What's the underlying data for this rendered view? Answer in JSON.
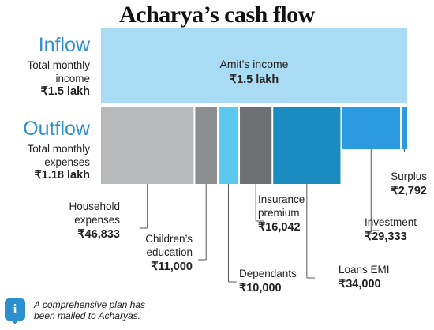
{
  "title": "Acharya’s cash flow",
  "inflow": {
    "label": "Inflow",
    "sub_line1": "Total monthly",
    "sub_line2": "income",
    "amount": "₹1.5 lakh"
  },
  "outflow": {
    "label": "Outflow",
    "sub_line1": "Total monthly",
    "sub_line2": "expenses",
    "amount": "₹1.18 lakh"
  },
  "footnote": "A comprehensive plan has been mailed to Acharyas.",
  "footnote_icon": "info-icon",
  "chart_data": {
    "type": "bar",
    "title": "Acharya’s cash flow",
    "unit": "₹",
    "total": 150000,
    "income": {
      "label": "Amit’s income",
      "amount_text": "₹1.5 lakh",
      "value": 150000,
      "color": "#a9dbf4"
    },
    "segments": [
      {
        "label_lines": [
          "Household",
          "expenses"
        ],
        "amount_text": "₹46,833",
        "value": 46833,
        "color": "#b8b9bb"
      },
      {
        "label_lines": [
          "Children’s",
          "education"
        ],
        "amount_text": "₹11,000",
        "value": 11000,
        "color": "#8c8d8f"
      },
      {
        "label_lines": [
          "Dependants"
        ],
        "amount_text": "₹10,000",
        "value": 10000,
        "color": "#5bc8f0"
      },
      {
        "label_lines": [
          "Insurance",
          "premium"
        ],
        "amount_text": "₹16,042",
        "value": 16042,
        "color": "#6f7073"
      },
      {
        "label_lines": [
          "Loans EMI"
        ],
        "amount_text": "₹34,000",
        "value": 34000,
        "color": "#1a8cbf"
      },
      {
        "label_lines": [
          "Investment"
        ],
        "amount_text": "₹29,333",
        "value": 29333,
        "color": "#2d9be0"
      },
      {
        "label_lines": [
          "Surplus"
        ],
        "amount_text": "₹2,792",
        "value": 2792,
        "color": "#2d9be0"
      }
    ]
  }
}
